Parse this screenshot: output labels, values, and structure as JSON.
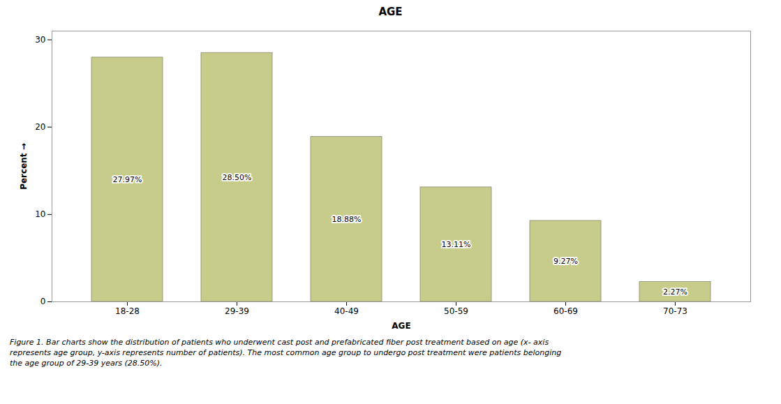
{
  "chart_data": {
    "type": "bar",
    "title": "AGE",
    "xlabel": "AGE",
    "ylabel": "Percent",
    "categories": [
      "18-28",
      "29-39",
      "40-49",
      "50-59",
      "60-69",
      "70-73"
    ],
    "values": [
      27.97,
      28.5,
      18.88,
      13.11,
      9.27,
      2.27
    ],
    "value_labels": [
      "27.97%",
      "28.50%",
      "18.88%",
      "13.11%",
      "9.27%",
      "2.27%"
    ],
    "data_labels": true,
    "color": "#c8cc8a",
    "ylim": [
      0,
      31
    ],
    "yticks": [
      0,
      10,
      20,
      30
    ],
    "grid": false,
    "caption": "Figure 1. Bar charts show the distribution of patients who underwent cast post and prefabricated fiber post treatment based on age (x- axis\nrepresents age group, y-axis represents number of patients). The most common age group to undergo post treatment were patients belonging\nthe age group of 29-39 years (28.50%)."
  }
}
